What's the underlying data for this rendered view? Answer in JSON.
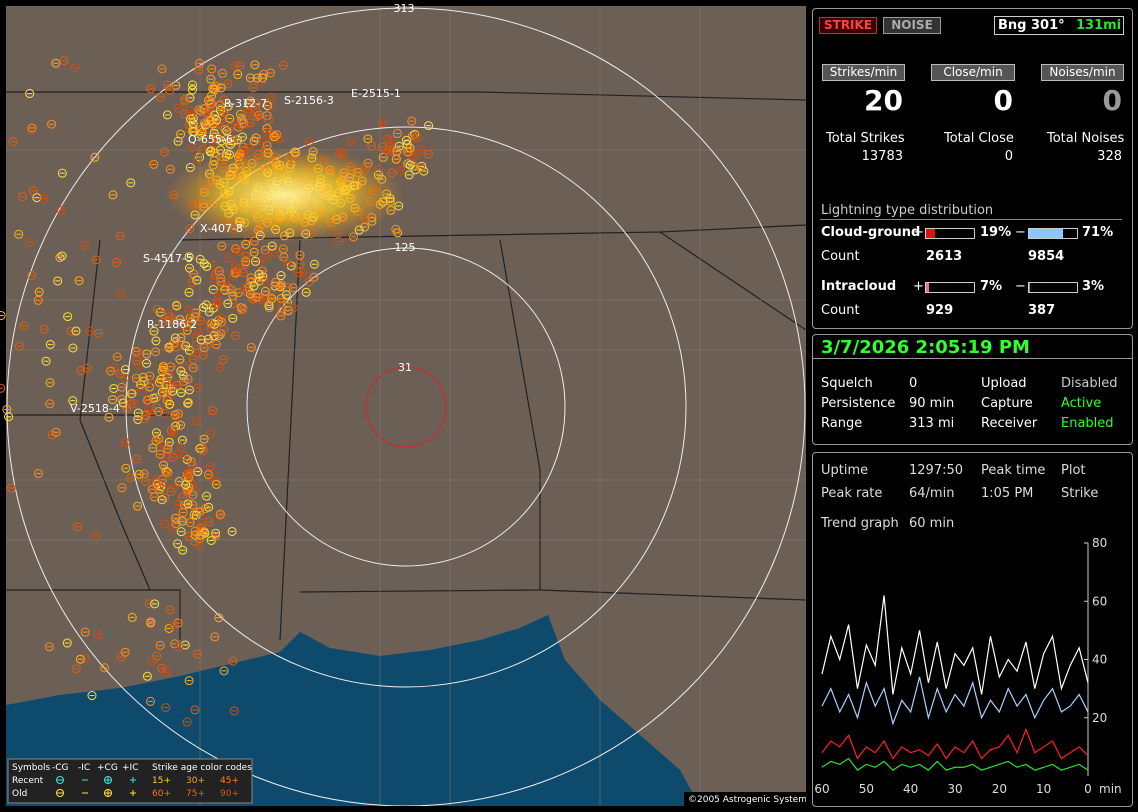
{
  "map": {
    "ring_labels": [
      "313",
      "125",
      "31"
    ],
    "storm_labels": [
      "R-312-7",
      "S-2156-3",
      "E-2515-1",
      "Q-655-6",
      "X-407-8",
      "S-4517-5",
      "R-1186-2",
      "V-2518-4"
    ],
    "copyright": "©2005 Astrogenic Systems",
    "legend": {
      "symbols": "Symbols",
      "types": [
        "-CG",
        "-IC",
        "+CG",
        "+IC"
      ],
      "age_title": "Strike age color codes",
      "rows": [
        "Recent",
        "Old"
      ],
      "recent_ages": [
        "15+",
        "30+",
        "45+"
      ],
      "old_ages": [
        "60+",
        "75+",
        "90+"
      ]
    }
  },
  "panel": {
    "buttons": [
      "STRIKE",
      "NOISE"
    ],
    "bearing": "Bng 301°",
    "distance": "131mi",
    "rates": [
      {
        "label": "Strikes/min",
        "value": "20"
      },
      {
        "label": "Close/min",
        "value": "0"
      },
      {
        "label": "Noises/min",
        "value": "0"
      }
    ],
    "totals": [
      {
        "label": "Total Strikes",
        "value": "13783"
      },
      {
        "label": "Total Close",
        "value": "0"
      },
      {
        "label": "Total Noises",
        "value": "328"
      }
    ],
    "distribution": {
      "title": "Lightning type distribution",
      "cloud_ground": {
        "label": "Cloud-ground",
        "plus_sign": "+",
        "minus_sign": "−",
        "plus": {
          "value": 19,
          "label": "19%"
        },
        "minus": {
          "value": 71,
          "label": "71%"
        },
        "count_label": "Count",
        "plus_count": "2613",
        "minus_count": "9854"
      },
      "intracloud": {
        "label": "Intracloud",
        "plus_sign": "+",
        "minus_sign": "−",
        "plus": {
          "value": 7,
          "label": "7%"
        },
        "minus": {
          "value": 3,
          "label": "3%"
        },
        "count_label": "Count",
        "plus_count": "929",
        "minus_count": "387"
      }
    },
    "datetime": "3/7/2026 2:05:19 PM",
    "settings": [
      [
        "Squelch",
        "0",
        "Upload",
        "Disabled"
      ],
      [
        "Persistence",
        "90 min",
        "Capture",
        "Active"
      ],
      [
        "Range",
        "313 mi",
        "Receiver",
        "Enabled"
      ]
    ],
    "stats": [
      [
        "Uptime",
        "1297:50",
        "Peak time",
        "Plot"
      ],
      [
        "Peak rate",
        "64/min",
        "1:05 PM",
        "Strike"
      ],
      [
        "Trend graph",
        "60 min"
      ]
    ]
  },
  "trend_graph": {
    "type": "line",
    "xlim": [
      60,
      0
    ],
    "ylim": [
      0,
      80
    ],
    "xticks": [
      60,
      50,
      40,
      30,
      20,
      10,
      0
    ],
    "yticks": [
      80,
      60,
      40,
      20
    ],
    "xlabel": "min",
    "x": [
      60,
      58,
      56,
      54,
      52,
      50,
      48,
      46,
      44,
      42,
      40,
      38,
      36,
      34,
      32,
      30,
      28,
      26,
      24,
      22,
      20,
      18,
      16,
      14,
      12,
      10,
      8,
      6,
      4,
      2,
      0
    ],
    "series": [
      {
        "color": "#ffffff",
        "values": [
          35,
          48,
          40,
          52,
          30,
          45,
          38,
          62,
          28,
          44,
          35,
          50,
          32,
          46,
          30,
          42,
          38,
          44,
          28,
          48,
          34,
          40,
          36,
          46,
          30,
          42,
          48,
          30,
          38,
          44,
          32
        ]
      },
      {
        "color": "#a8d0ff",
        "values": [
          24,
          30,
          22,
          28,
          20,
          32,
          24,
          30,
          18,
          26,
          22,
          34,
          20,
          30,
          22,
          28,
          24,
          32,
          20,
          26,
          22,
          30,
          24,
          28,
          20,
          26,
          30,
          22,
          24,
          28,
          22
        ]
      },
      {
        "color": "#ff2020",
        "values": [
          8,
          12,
          10,
          14,
          6,
          10,
          8,
          12,
          6,
          10,
          8,
          9,
          7,
          11,
          6,
          10,
          8,
          12,
          6,
          9,
          10,
          14,
          8,
          16,
          8,
          10,
          12,
          6,
          8,
          10,
          7
        ]
      },
      {
        "color": "#30e030",
        "values": [
          3,
          5,
          4,
          6,
          2,
          4,
          3,
          5,
          2,
          4,
          3,
          4,
          2,
          5,
          2,
          3,
          3,
          4,
          2,
          3,
          4,
          5,
          3,
          4,
          2,
          3,
          4,
          2,
          3,
          4,
          2
        ]
      }
    ]
  }
}
